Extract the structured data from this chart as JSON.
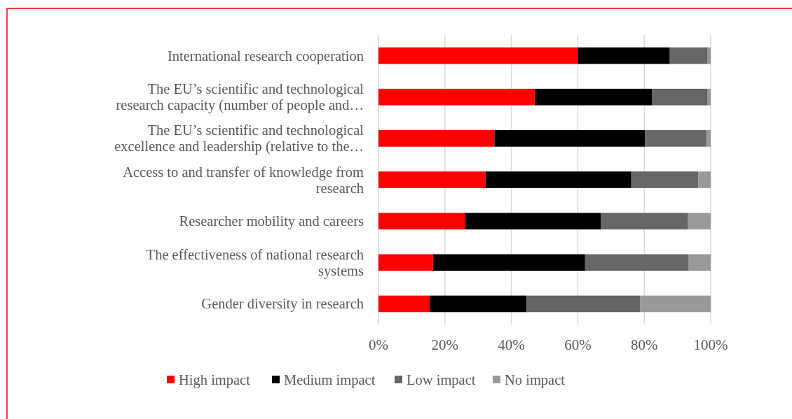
{
  "chart_data": {
    "type": "bar",
    "orientation": "horizontal",
    "stacked": true,
    "categories": [
      "International research cooperation",
      "The EU’s scientific and technological\nresearch capacity (number of people and…",
      "The EU’s scientific and technological\nexcellence and leadership (relative to the…",
      "Access to and transfer of knowledge from\nresearch",
      "Researcher mobility and careers",
      "The effectiveness of national research\nsystems",
      "Gender diversity in research"
    ],
    "series": [
      {
        "name": "High impact",
        "color": "#ff0000",
        "values": [
          60,
          47,
          34.9,
          32.2,
          26,
          16.4,
          15.4
        ]
      },
      {
        "name": "Medium impact",
        "color": "#000000",
        "values": [
          27.7,
          35.4,
          45.3,
          43.9,
          41,
          45.8,
          29.1
        ]
      },
      {
        "name": "Low impact",
        "color": "#666666",
        "values": [
          11.4,
          16.7,
          18.5,
          20.2,
          26.2,
          31.2,
          34.2
        ]
      },
      {
        "name": "No impact",
        "color": "#999999",
        "values": [
          0.9,
          0.9,
          1.3,
          3.7,
          6.8,
          6.6,
          21.3
        ]
      }
    ],
    "xlim": [
      0,
      100
    ],
    "xticks": [
      {
        "value": 0,
        "label": "0%"
      },
      {
        "value": 20,
        "label": "20%"
      },
      {
        "value": 40,
        "label": "40%"
      },
      {
        "value": 60,
        "label": "60%"
      },
      {
        "value": 80,
        "label": "80%"
      },
      {
        "value": 100,
        "label": "100%"
      }
    ],
    "grid": "x",
    "legend": "bottom"
  }
}
